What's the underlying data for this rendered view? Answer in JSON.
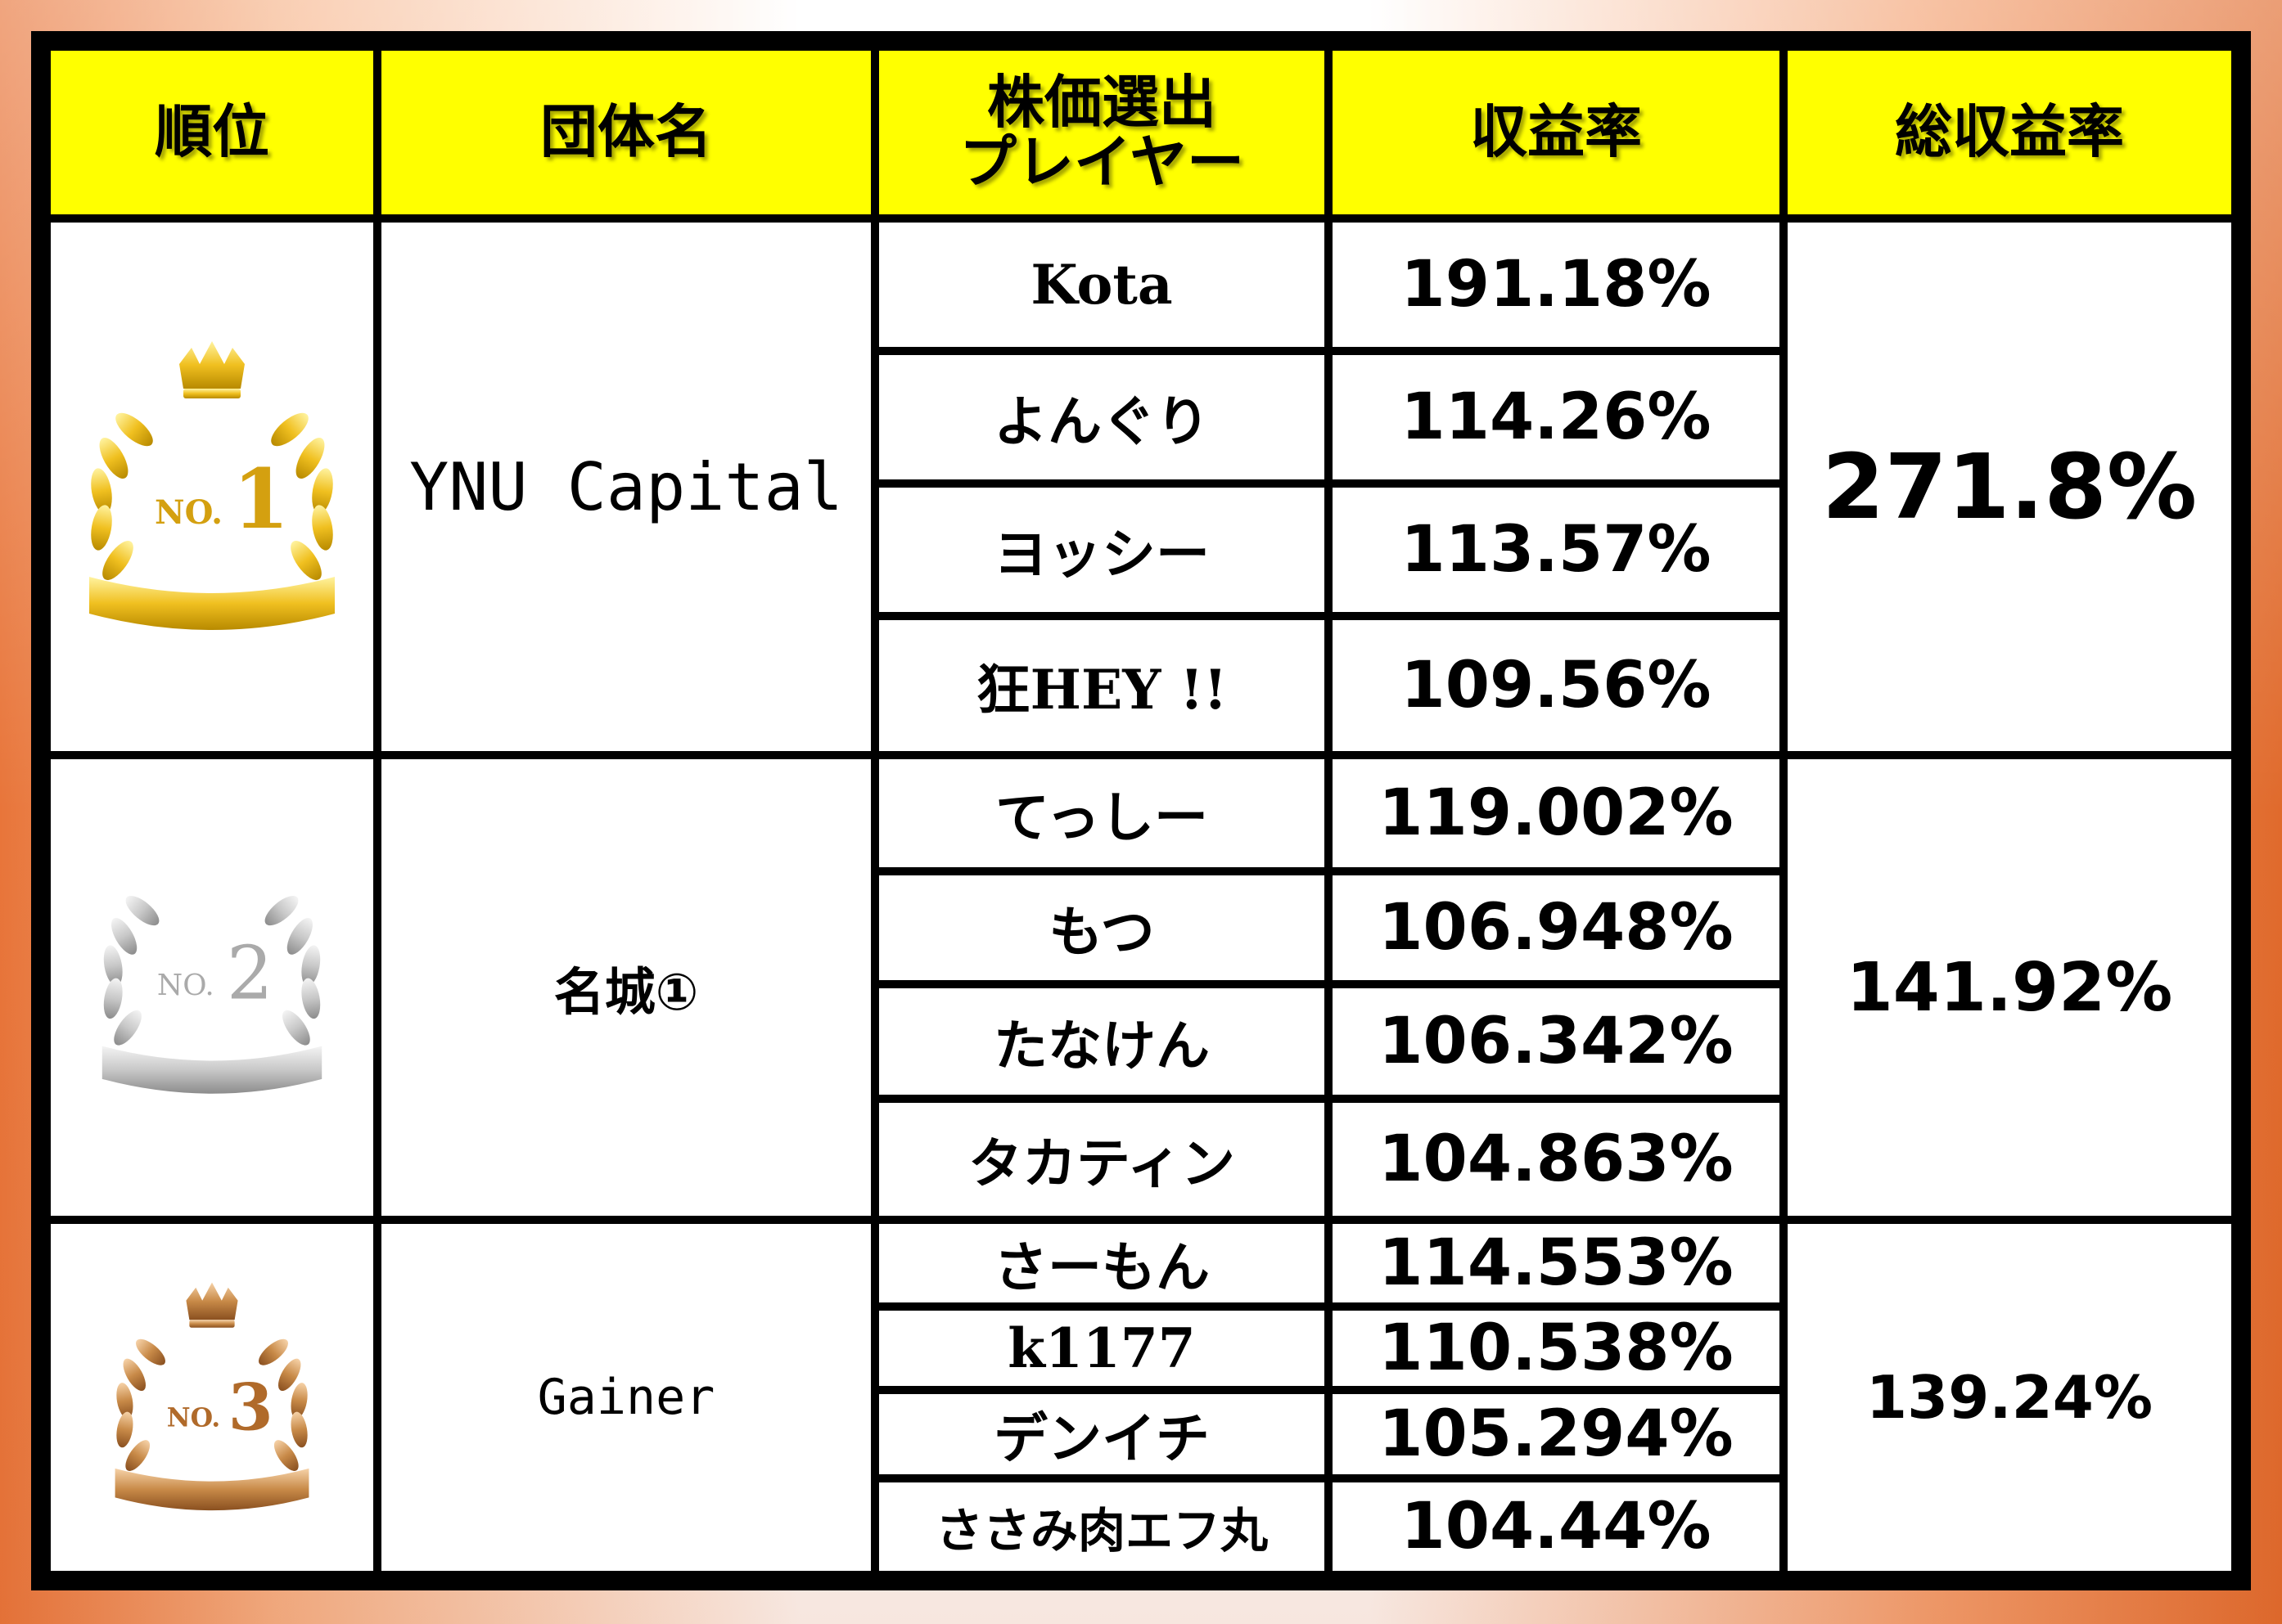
{
  "headers": {
    "rank": "順位",
    "group": "団体名",
    "player_line1": "株価選出",
    "player_line2": "プレイヤー",
    "rate": "収益率",
    "total": "総収益率"
  },
  "rows": [
    {
      "rank_badge": {
        "label": "NO.",
        "number": "1",
        "style": "gold"
      },
      "group": "YNU Capital",
      "total": "271.8%",
      "players": [
        {
          "name": "Kota",
          "rate": "191.18%"
        },
        {
          "name": "よんぐり",
          "rate": "114.26%"
        },
        {
          "name": "ヨッシー",
          "rate": "113.57%"
        },
        {
          "name": "狂HEY !!",
          "rate": "109.56%"
        }
      ]
    },
    {
      "rank_badge": {
        "label": "NO.",
        "number": "2",
        "style": "silver"
      },
      "group": "名城①",
      "total": "141.92%",
      "players": [
        {
          "name": "てっしー",
          "rate": "119.002%"
        },
        {
          "name": "もつ",
          "rate": "106.948%"
        },
        {
          "name": "たなけん",
          "rate": "106.342%"
        },
        {
          "name": "タカティン",
          "rate": "104.863%"
        }
      ]
    },
    {
      "rank_badge": {
        "label": "NO.",
        "number": "3",
        "style": "bronze"
      },
      "group": "Gainer",
      "total": "139.24%",
      "players": [
        {
          "name": "さーもん",
          "rate": "114.553%"
        },
        {
          "name": "k1177",
          "rate": "110.538%"
        },
        {
          "name": "デンイチ",
          "rate": "105.294%"
        },
        {
          "name": "ささみ肉エフ丸",
          "rate": "104.44%"
        }
      ]
    }
  ],
  "colors": {
    "header_bg": "#ffff00",
    "border": "#000000",
    "gold": "#e8b820",
    "silver": "#c8c8c8",
    "bronze": "#c07a3a",
    "frame_accent": "#e8753a"
  }
}
